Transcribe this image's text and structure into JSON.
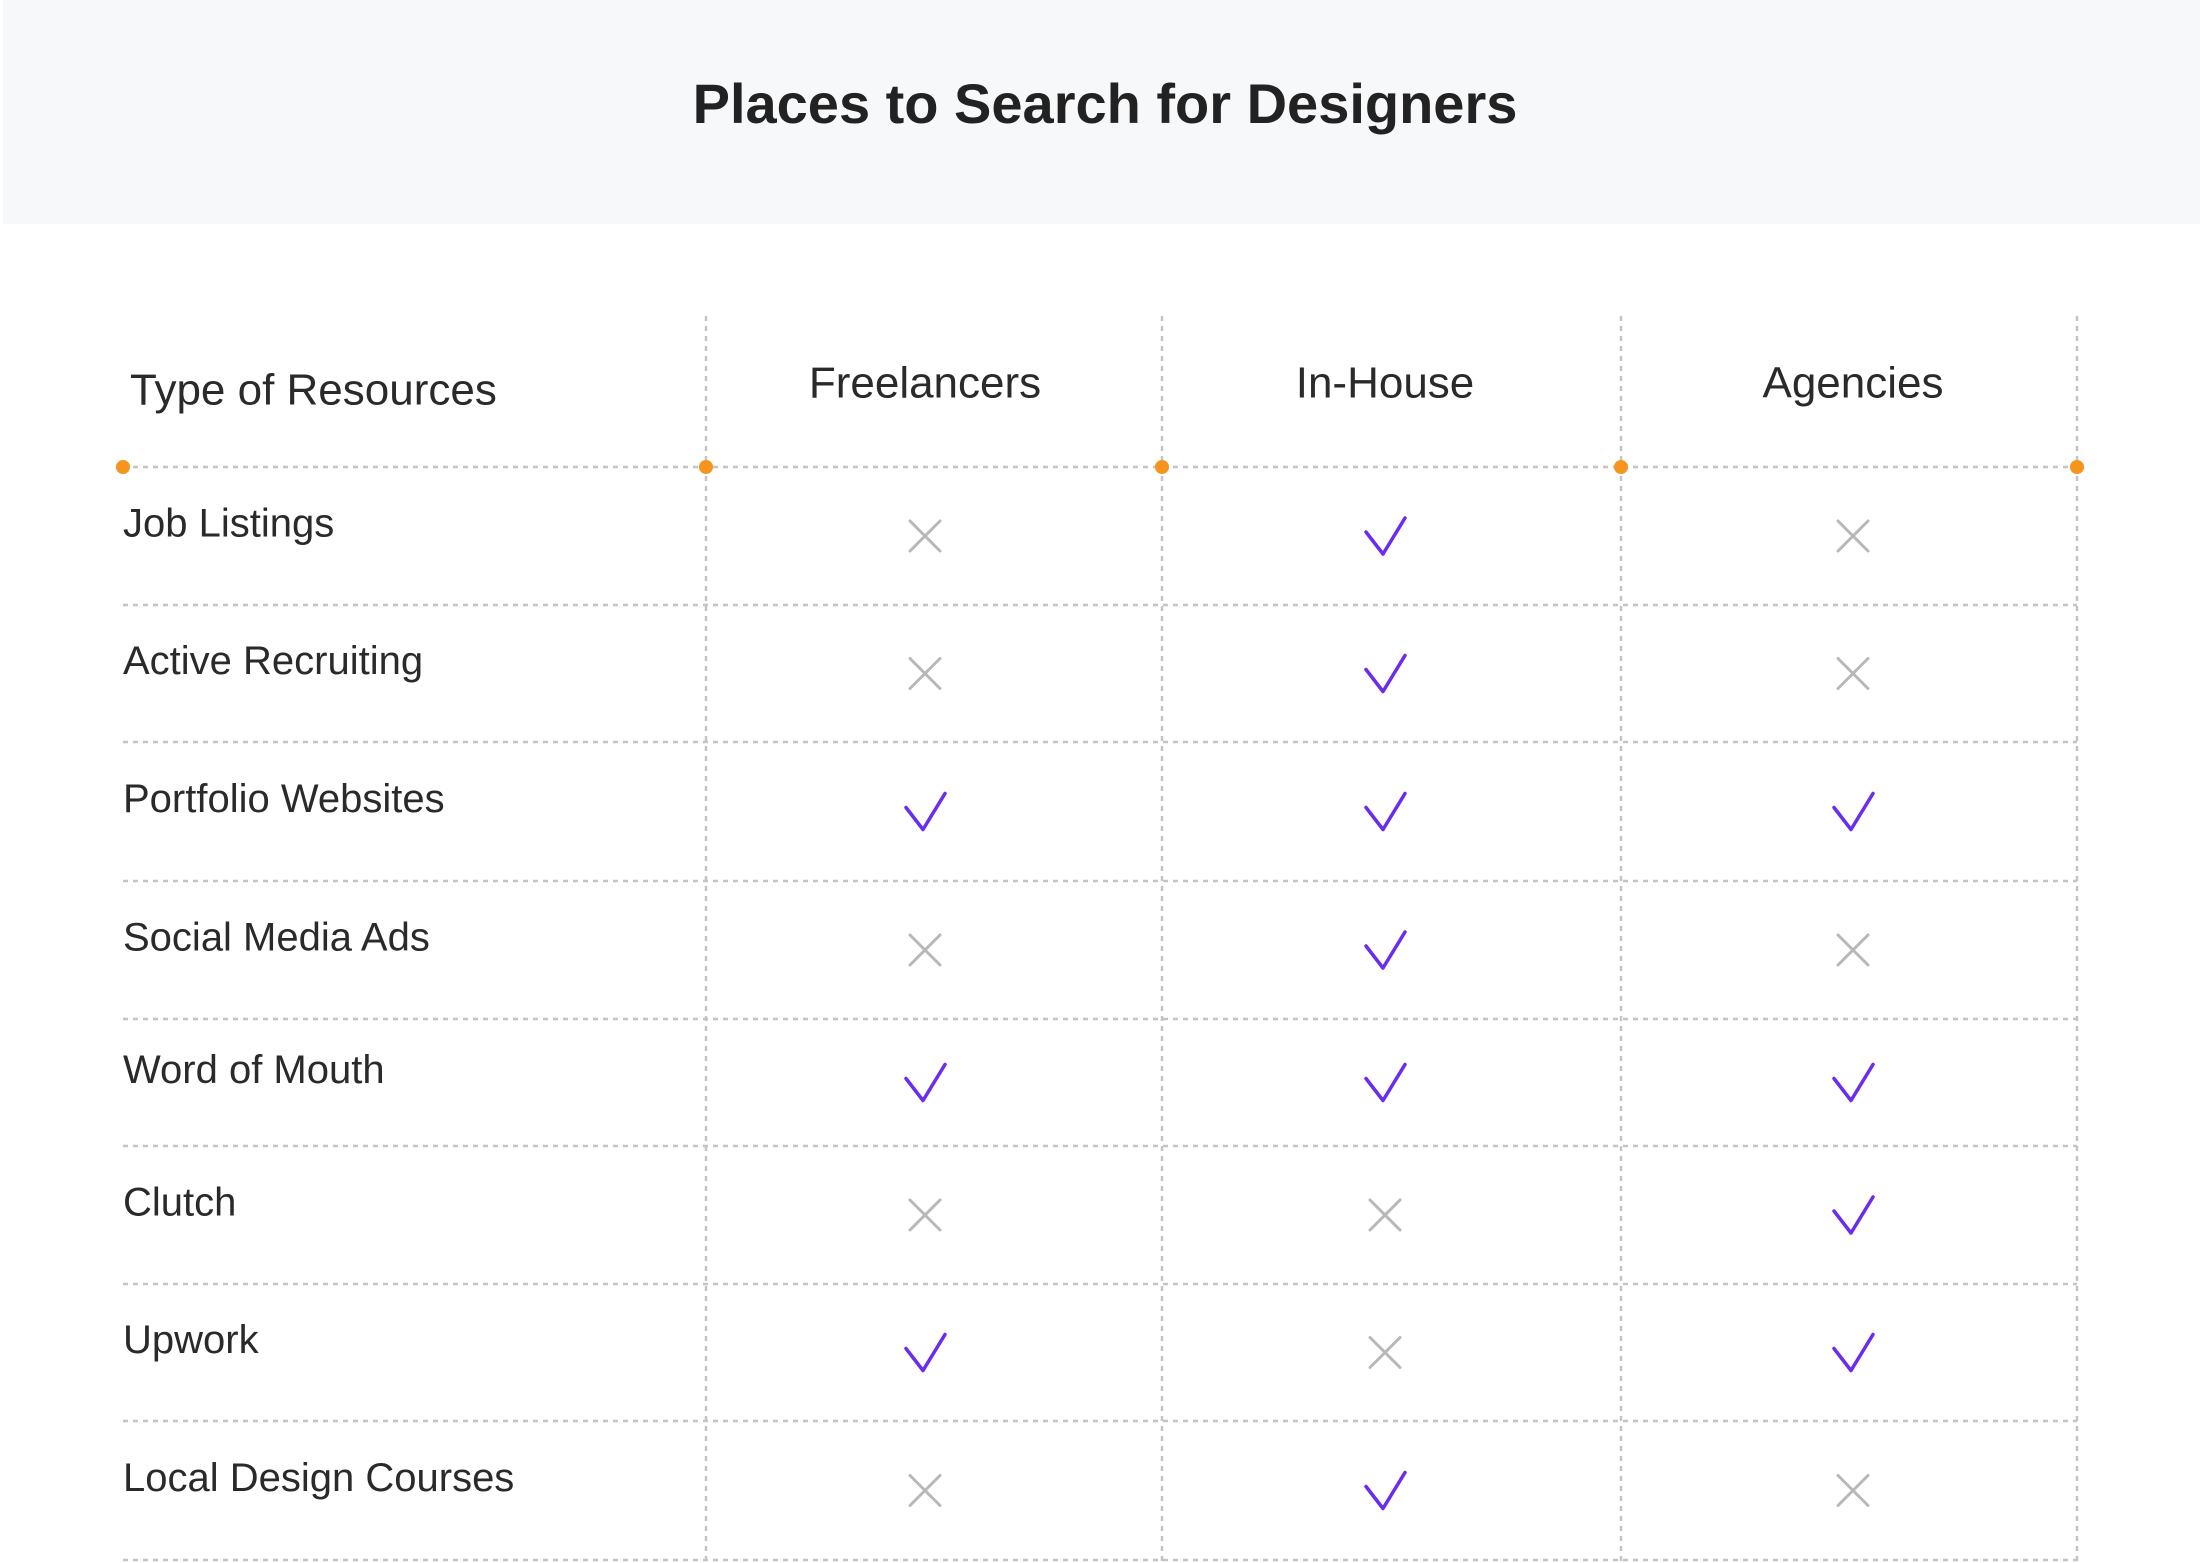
{
  "header": {
    "title": "Places to Search for Designers"
  },
  "table": {
    "columns": [
      "Type of Resources",
      "Freelancers",
      "In-House",
      "Agencies"
    ],
    "rows": [
      {
        "label": "Job Listings",
        "cells": [
          false,
          true,
          false
        ]
      },
      {
        "label": "Active Recruiting",
        "cells": [
          false,
          true,
          false
        ]
      },
      {
        "label": "Portfolio Websites",
        "cells": [
          true,
          true,
          true
        ]
      },
      {
        "label": "Social Media Ads",
        "cells": [
          false,
          true,
          false
        ]
      },
      {
        "label": "Word of Mouth",
        "cells": [
          true,
          true,
          true
        ]
      },
      {
        "label": "Clutch",
        "cells": [
          false,
          false,
          true
        ]
      },
      {
        "label": "Upwork",
        "cells": [
          true,
          false,
          true
        ]
      },
      {
        "label": "Local Design Courses",
        "cells": [
          false,
          true,
          false
        ]
      }
    ]
  }
}
